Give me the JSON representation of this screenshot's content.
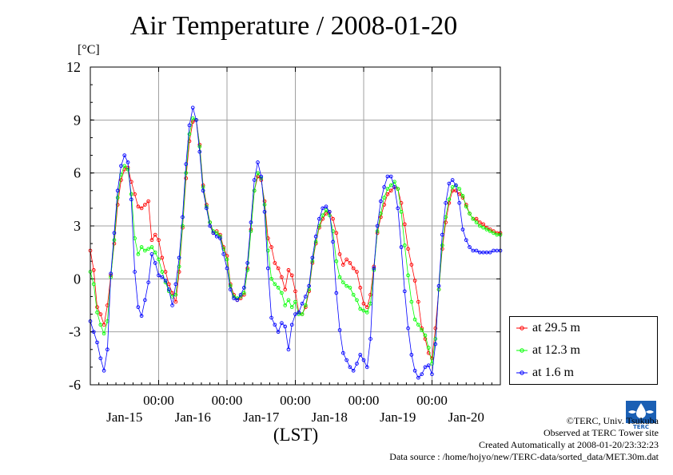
{
  "chart_data": {
    "type": "line",
    "title": "Air Temperature / 2008-01-20",
    "ylabel": "[°C]",
    "xlabel": "(LST)",
    "ylim": [
      -6,
      12
    ],
    "yticks": [
      -6,
      -3,
      0,
      3,
      6,
      9,
      12
    ],
    "xlim": [
      0,
      6
    ],
    "xticks_time": [
      {
        "x": 1,
        "label": "00:00"
      },
      {
        "x": 2,
        "label": "00:00"
      },
      {
        "x": 3,
        "label": "00:00"
      },
      {
        "x": 4,
        "label": "00:00"
      },
      {
        "x": 5,
        "label": "00:00"
      }
    ],
    "xticks_date": [
      {
        "x": 0.5,
        "label": "Jan-15"
      },
      {
        "x": 1.5,
        "label": "Jan-16"
      },
      {
        "x": 2.5,
        "label": "Jan-17"
      },
      {
        "x": 3.5,
        "label": "Jan-18"
      },
      {
        "x": 4.5,
        "label": "Jan-19"
      },
      {
        "x": 5.5,
        "label": "Jan-20"
      }
    ],
    "grid": true,
    "legend_position": "right",
    "series": [
      {
        "name": "at 29.5 m",
        "color": "#ff0000",
        "x": [
          0.0,
          0.05,
          0.1,
          0.15,
          0.2,
          0.25,
          0.3,
          0.35,
          0.4,
          0.45,
          0.5,
          0.55,
          0.6,
          0.65,
          0.7,
          0.75,
          0.8,
          0.85,
          0.9,
          0.95,
          1.0,
          1.05,
          1.1,
          1.15,
          1.2,
          1.25,
          1.3,
          1.35,
          1.4,
          1.45,
          1.5,
          1.55,
          1.6,
          1.65,
          1.7,
          1.75,
          1.8,
          1.85,
          1.9,
          1.95,
          2.0,
          2.05,
          2.1,
          2.15,
          2.2,
          2.25,
          2.3,
          2.35,
          2.4,
          2.45,
          2.5,
          2.55,
          2.6,
          2.65,
          2.7,
          2.75,
          2.8,
          2.85,
          2.9,
          2.95,
          3.0,
          3.05,
          3.1,
          3.15,
          3.2,
          3.25,
          3.3,
          3.35,
          3.4,
          3.45,
          3.5,
          3.55,
          3.6,
          3.65,
          3.7,
          3.75,
          3.8,
          3.85,
          3.9,
          3.95,
          4.0,
          4.05,
          4.1,
          4.15,
          4.2,
          4.25,
          4.3,
          4.35,
          4.4,
          4.45,
          4.5,
          4.55,
          4.6,
          4.65,
          4.7,
          4.75,
          4.8,
          4.85,
          4.9,
          4.95,
          5.0,
          5.05,
          5.1,
          5.15,
          5.2,
          5.25,
          5.3,
          5.35,
          5.4,
          5.45,
          5.5,
          5.55,
          5.6,
          5.65,
          5.7,
          5.75,
          5.8,
          5.85,
          5.9,
          5.95,
          6.0
        ],
        "y": [
          1.6,
          0.5,
          -1.6,
          -2.0,
          -2.6,
          -1.5,
          0.2,
          2.0,
          4.2,
          5.6,
          6.2,
          6.3,
          5.5,
          4.8,
          4.1,
          4.0,
          4.2,
          4.4,
          2.2,
          2.5,
          2.2,
          1.2,
          0.4,
          -0.3,
          -0.8,
          -1.3,
          0.4,
          2.9,
          5.7,
          7.8,
          8.9,
          9.0,
          7.6,
          5.3,
          4.2,
          3.2,
          2.6,
          2.7,
          2.5,
          1.8,
          1.3,
          -0.3,
          -0.9,
          -1.2,
          -1.1,
          -0.9,
          0.6,
          2.8,
          5.0,
          5.8,
          5.6,
          4.4,
          2.3,
          1.8,
          0.9,
          0.6,
          0.1,
          -0.6,
          0.5,
          0.2,
          -0.7,
          -1.9,
          -2.0,
          -1.6,
          -0.7,
          0.9,
          2.0,
          2.9,
          3.4,
          3.7,
          3.8,
          3.4,
          2.6,
          1.4,
          0.8,
          1.1,
          0.9,
          0.6,
          0.4,
          -0.5,
          -1.4,
          -1.6,
          -0.9,
          0.7,
          2.6,
          3.5,
          4.2,
          4.8,
          5.0,
          5.2,
          5.1,
          4.3,
          3.1,
          1.7,
          0.8,
          -0.1,
          -1.3,
          -2.8,
          -3.4,
          -4.2,
          -4.5,
          -2.8,
          -0.6,
          1.7,
          3.2,
          4.3,
          5.0,
          5.0,
          4.8,
          4.6,
          4.2,
          3.7,
          3.4,
          3.4,
          3.2,
          3.1,
          2.9,
          2.8,
          2.7,
          2.6,
          2.6
        ]
      },
      {
        "name": "at 12.3 m",
        "color": "#00ff00",
        "x": [
          0.0,
          0.05,
          0.1,
          0.15,
          0.2,
          0.25,
          0.3,
          0.35,
          0.4,
          0.45,
          0.5,
          0.55,
          0.6,
          0.65,
          0.7,
          0.75,
          0.8,
          0.85,
          0.9,
          0.95,
          1.0,
          1.05,
          1.1,
          1.15,
          1.2,
          1.25,
          1.3,
          1.35,
          1.4,
          1.45,
          1.5,
          1.55,
          1.6,
          1.65,
          1.7,
          1.75,
          1.8,
          1.85,
          1.9,
          1.95,
          2.0,
          2.05,
          2.1,
          2.15,
          2.2,
          2.25,
          2.3,
          2.35,
          2.4,
          2.45,
          2.5,
          2.55,
          2.6,
          2.65,
          2.7,
          2.75,
          2.8,
          2.85,
          2.9,
          2.95,
          3.0,
          3.05,
          3.1,
          3.15,
          3.2,
          3.25,
          3.3,
          3.35,
          3.4,
          3.45,
          3.5,
          3.55,
          3.6,
          3.65,
          3.7,
          3.75,
          3.8,
          3.85,
          3.9,
          3.95,
          4.0,
          4.05,
          4.1,
          4.15,
          4.2,
          4.25,
          4.3,
          4.35,
          4.4,
          4.45,
          4.5,
          4.55,
          4.6,
          4.65,
          4.7,
          4.75,
          4.8,
          4.85,
          4.9,
          4.95,
          5.0,
          5.05,
          5.1,
          5.15,
          5.2,
          5.25,
          5.3,
          5.35,
          5.4,
          5.45,
          5.5,
          5.55,
          5.6,
          5.65,
          5.7,
          5.75,
          5.8,
          5.85,
          5.9,
          5.95,
          6.0
        ],
        "y": [
          0.4,
          -0.3,
          -1.9,
          -2.6,
          -3.1,
          -2.4,
          0.1,
          2.2,
          4.6,
          5.9,
          6.4,
          6.2,
          4.8,
          2.3,
          1.4,
          1.8,
          1.6,
          1.7,
          1.8,
          1.5,
          1.1,
          0.4,
          -0.2,
          -0.7,
          -1.0,
          -0.9,
          0.7,
          3.0,
          6.0,
          8.2,
          9.1,
          9.0,
          7.5,
          5.2,
          4.1,
          3.2,
          2.7,
          2.6,
          2.4,
          1.7,
          1.1,
          -0.4,
          -1.0,
          -1.1,
          -1.0,
          -0.8,
          0.5,
          2.7,
          5.0,
          6.0,
          5.7,
          4.2,
          1.6,
          0.0,
          -0.3,
          -0.5,
          -0.8,
          -1.5,
          -1.2,
          -1.6,
          -1.3,
          -2.0,
          -2.0,
          -1.5,
          -0.6,
          1.0,
          2.1,
          3.0,
          3.6,
          3.9,
          3.6,
          2.7,
          1.0,
          0.1,
          -0.2,
          -0.4,
          -0.5,
          -0.9,
          -1.2,
          -1.7,
          -1.8,
          -1.9,
          -1.4,
          0.5,
          2.7,
          3.7,
          4.6,
          5.1,
          5.3,
          5.5,
          5.1,
          3.8,
          1.9,
          0.2,
          -1.3,
          -2.3,
          -2.6,
          -2.9,
          -3.2,
          -3.9,
          -4.8,
          -3.4,
          -0.6,
          1.9,
          3.5,
          4.5,
          5.2,
          5.3,
          5.1,
          4.7,
          4.1,
          3.7,
          3.4,
          3.2,
          3.0,
          2.9,
          2.8,
          2.7,
          2.6,
          2.5,
          2.5
        ]
      },
      {
        "name": "at 1.6 m",
        "color": "#0000ff",
        "x": [
          0.0,
          0.05,
          0.1,
          0.15,
          0.2,
          0.25,
          0.3,
          0.35,
          0.4,
          0.45,
          0.5,
          0.55,
          0.6,
          0.65,
          0.7,
          0.75,
          0.8,
          0.85,
          0.9,
          0.95,
          1.0,
          1.05,
          1.1,
          1.15,
          1.2,
          1.25,
          1.3,
          1.35,
          1.4,
          1.45,
          1.5,
          1.55,
          1.6,
          1.65,
          1.7,
          1.75,
          1.8,
          1.85,
          1.9,
          1.95,
          2.0,
          2.05,
          2.1,
          2.15,
          2.2,
          2.25,
          2.3,
          2.35,
          2.4,
          2.45,
          2.5,
          2.55,
          2.6,
          2.65,
          2.7,
          2.75,
          2.8,
          2.85,
          2.9,
          2.95,
          3.0,
          3.05,
          3.1,
          3.15,
          3.2,
          3.25,
          3.3,
          3.35,
          3.4,
          3.45,
          3.5,
          3.55,
          3.6,
          3.65,
          3.7,
          3.75,
          3.8,
          3.85,
          3.9,
          3.95,
          4.0,
          4.05,
          4.1,
          4.15,
          4.2,
          4.25,
          4.3,
          4.35,
          4.4,
          4.45,
          4.5,
          4.55,
          4.6,
          4.65,
          4.7,
          4.75,
          4.8,
          4.85,
          4.9,
          4.95,
          5.0,
          5.05,
          5.1,
          5.15,
          5.2,
          5.25,
          5.3,
          5.35,
          5.4,
          5.45,
          5.5,
          5.55,
          5.6,
          5.65,
          5.7,
          5.75,
          5.8,
          5.85,
          5.9,
          5.95,
          6.0
        ],
        "y": [
          -2.4,
          -3.0,
          -3.6,
          -4.5,
          -5.2,
          -4.0,
          0.3,
          2.6,
          5.0,
          6.4,
          7.0,
          6.6,
          4.5,
          0.4,
          -1.6,
          -2.1,
          -1.2,
          -0.2,
          1.4,
          0.9,
          0.2,
          0.1,
          -0.1,
          -0.6,
          -1.5,
          -0.3,
          1.2,
          3.5,
          6.5,
          8.7,
          9.7,
          9.0,
          7.2,
          5.0,
          4.0,
          3.0,
          2.6,
          2.4,
          2.3,
          1.4,
          0.6,
          -0.6,
          -1.1,
          -1.2,
          -0.9,
          -0.5,
          0.9,
          3.2,
          5.6,
          6.6,
          5.8,
          3.8,
          0.6,
          -2.2,
          -2.6,
          -3.0,
          -2.5,
          -2.7,
          -4.0,
          -2.6,
          -2.0,
          -1.9,
          -1.4,
          -1.0,
          -0.4,
          1.2,
          2.4,
          3.4,
          4.0,
          4.1,
          3.8,
          2.1,
          -0.8,
          -2.9,
          -4.2,
          -4.6,
          -5.0,
          -5.2,
          -4.8,
          -4.3,
          -4.6,
          -5.0,
          -3.4,
          0.6,
          3.0,
          4.4,
          5.2,
          5.8,
          5.8,
          5.2,
          4.0,
          1.8,
          -0.7,
          -2.8,
          -4.3,
          -5.2,
          -5.6,
          -5.4,
          -5.0,
          -4.9,
          -5.4,
          -3.7,
          -0.4,
          2.5,
          4.3,
          5.4,
          5.6,
          5.3,
          4.3,
          2.8,
          2.2,
          1.8,
          1.6,
          1.6,
          1.5,
          1.5,
          1.5,
          1.5,
          1.6,
          1.6,
          1.6
        ]
      }
    ]
  },
  "credits": {
    "copyright": "©TERC, Univ. Tsukuba",
    "observed": "Observed at TERC Tower site",
    "created": "Created Automatically at 2008-01-20/23:32:23",
    "source": "Data source : /home/hojyo/new/TERC-data/sorted_data/MET.30m.dat"
  },
  "logo_text": "TERC"
}
